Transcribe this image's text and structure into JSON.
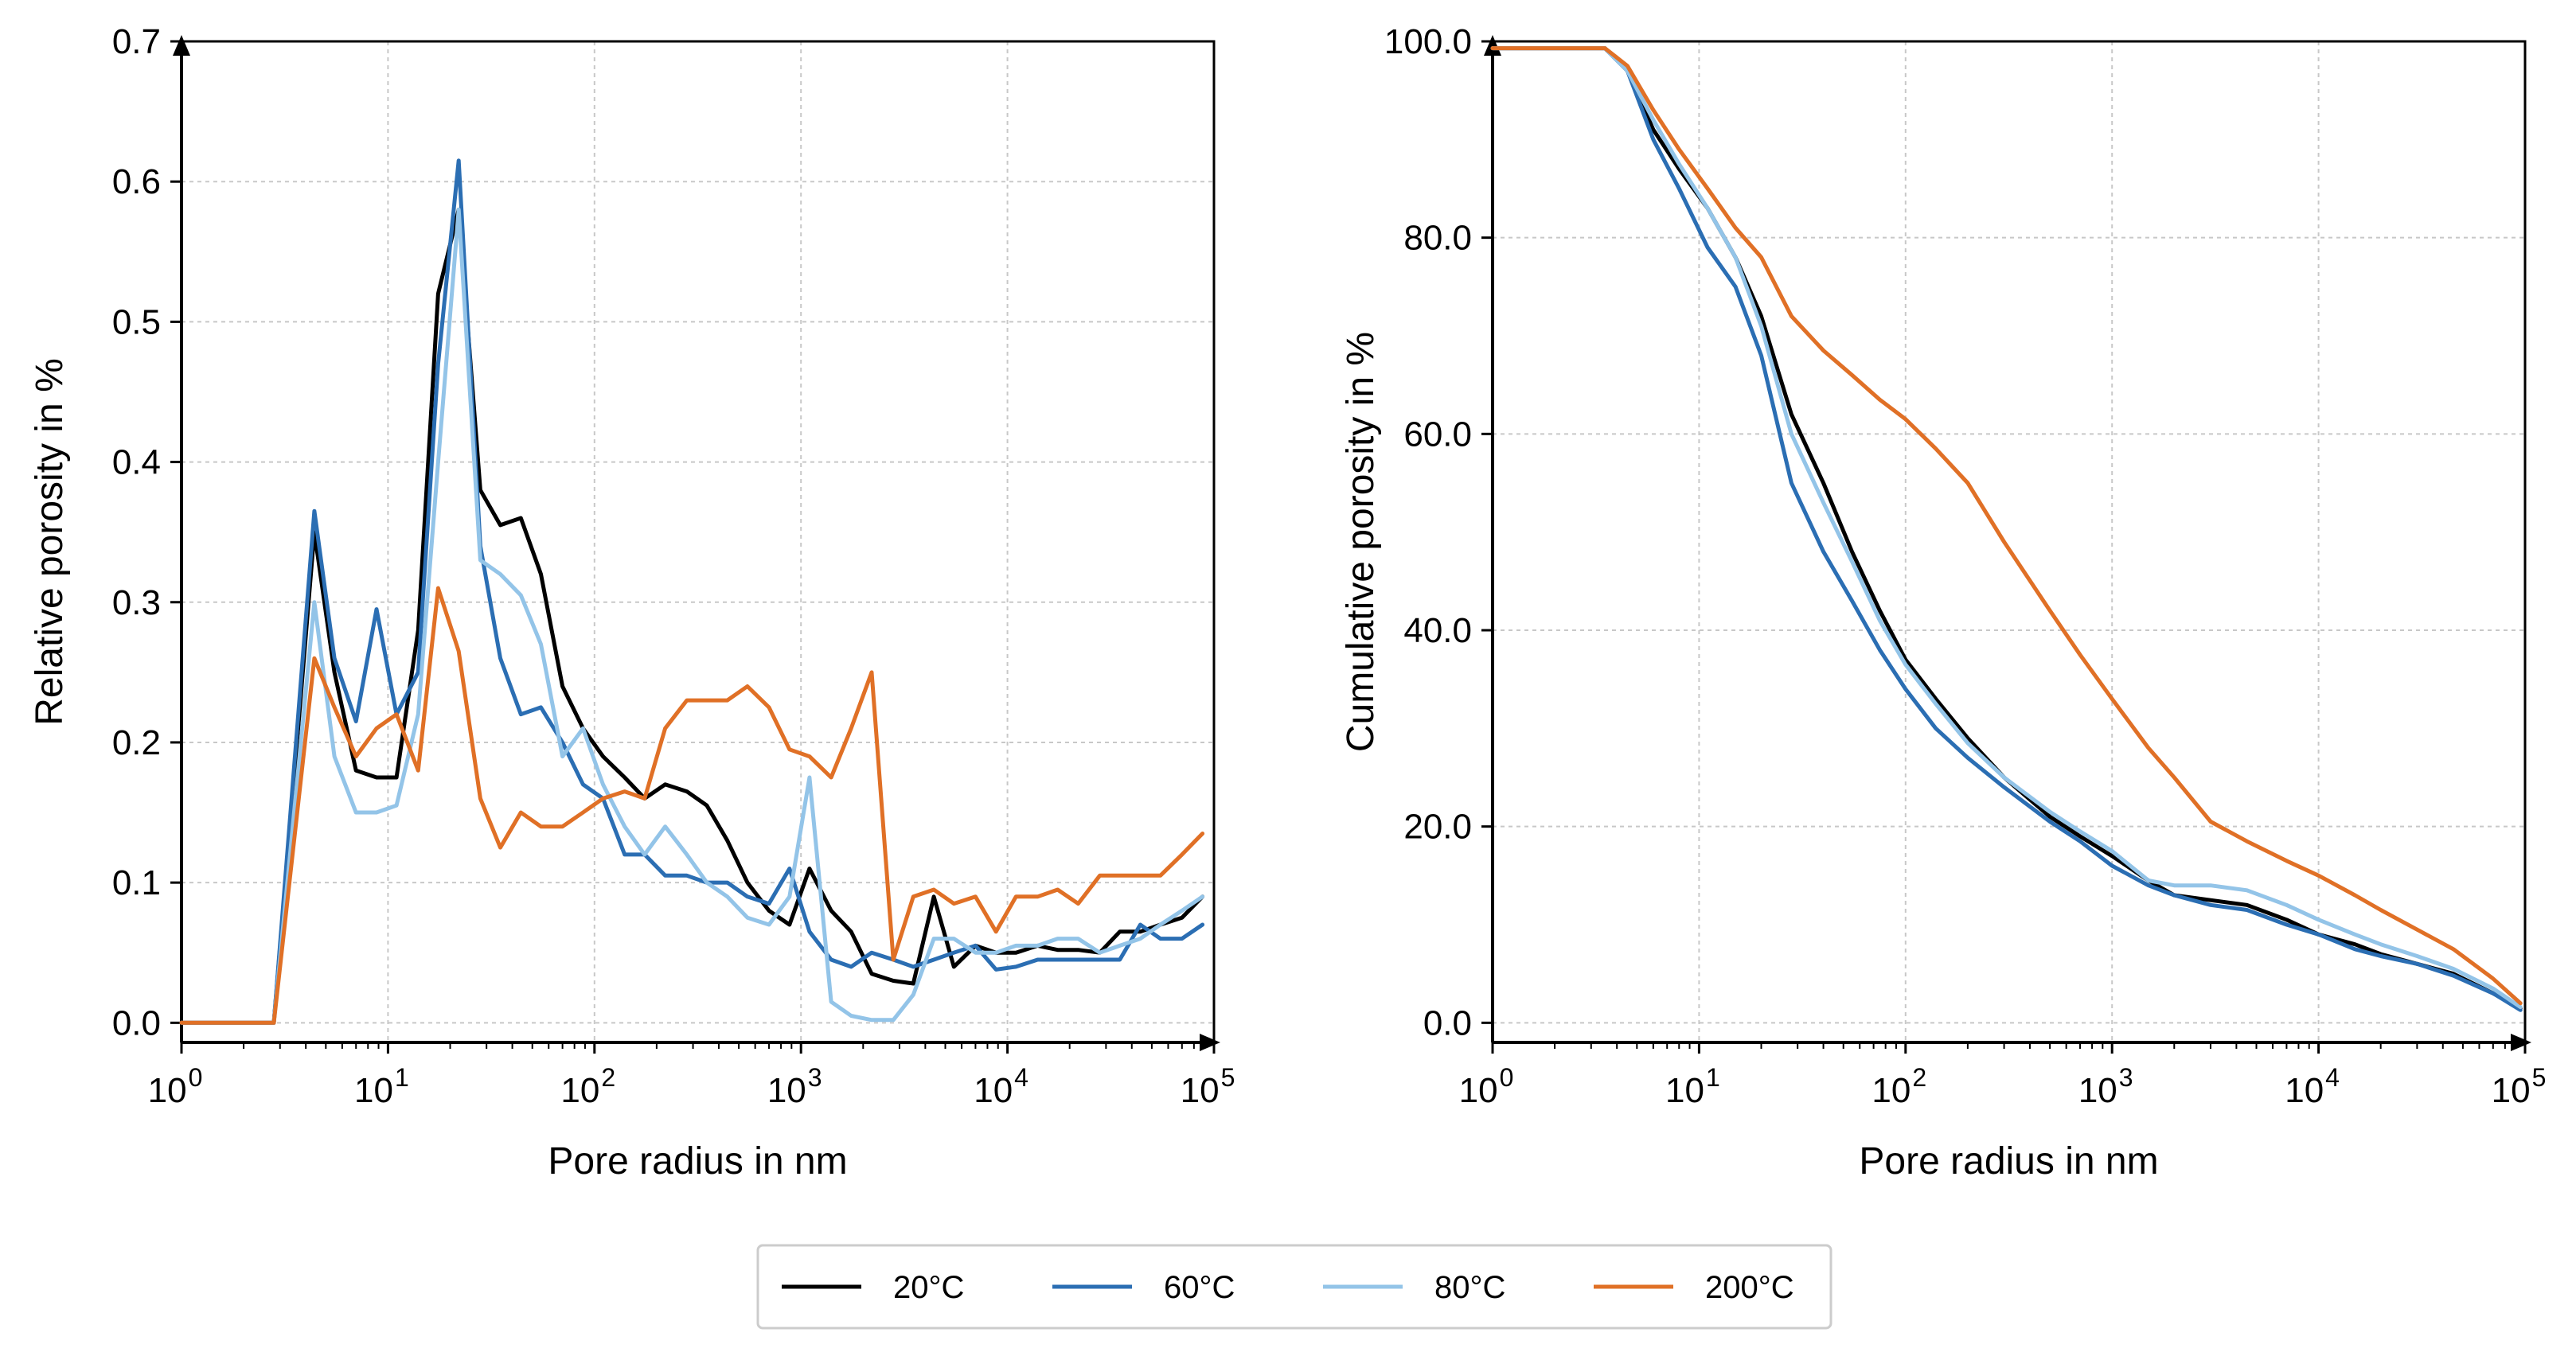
{
  "chart_data": [
    {
      "type": "line",
      "id": "relative",
      "xlabel": "Pore radius in nm",
      "ylabel": "Relative porosity in %",
      "xscale": "log",
      "xlim": [
        1,
        100000
      ],
      "ylim": [
        0,
        0.7
      ],
      "xticks": [
        1,
        10,
        100,
        1000,
        10000,
        100000
      ],
      "yticks": [
        0.0,
        0.1,
        0.2,
        0.3,
        0.4,
        0.5,
        0.6,
        0.7
      ],
      "ytick_labels": [
        "0.0",
        "0.1",
        "0.2",
        "0.3",
        "0.4",
        "0.5",
        "0.6",
        "0.7"
      ],
      "grid": true,
      "series": [
        {
          "name": "20°C",
          "x": [
            1,
            2.8,
            4.4,
            5.5,
            7,
            8.8,
            11,
            14,
            17.5,
            22,
            28,
            35,
            44,
            55,
            70,
            88,
            110,
            140,
            175,
            220,
            280,
            350,
            440,
            550,
            700,
            880,
            1100,
            1400,
            1750,
            2200,
            2800,
            3500,
            4400,
            5500,
            7000,
            8800,
            11000,
            14000,
            17500,
            22000,
            28000,
            35000,
            44000,
            55000,
            70000,
            88000
          ],
          "y": [
            0,
            0,
            0.35,
            0.25,
            0.18,
            0.175,
            0.175,
            0.28,
            0.52,
            0.58,
            0.38,
            0.355,
            0.36,
            0.32,
            0.24,
            0.21,
            0.19,
            0.175,
            0.16,
            0.17,
            0.165,
            0.155,
            0.13,
            0.1,
            0.08,
            0.07,
            0.11,
            0.08,
            0.065,
            0.035,
            0.03,
            0.028,
            0.09,
            0.04,
            0.055,
            0.05,
            0.05,
            0.055,
            0.052,
            0.052,
            0.05,
            0.065,
            0.065,
            0.07,
            0.075,
            0.09
          ]
        },
        {
          "name": "60°C",
          "x": [
            1,
            2.8,
            4.4,
            5.5,
            7,
            8.8,
            11,
            14,
            17.5,
            22,
            28,
            35,
            44,
            55,
            70,
            88,
            110,
            140,
            175,
            220,
            280,
            350,
            440,
            550,
            700,
            880,
            1100,
            1400,
            1750,
            2200,
            2800,
            3500,
            4400,
            5500,
            7000,
            8800,
            11000,
            14000,
            17500,
            22000,
            28000,
            35000,
            44000,
            55000,
            70000,
            88000
          ],
          "y": [
            0,
            0,
            0.365,
            0.26,
            0.215,
            0.295,
            0.22,
            0.25,
            0.47,
            0.615,
            0.34,
            0.26,
            0.22,
            0.225,
            0.2,
            0.17,
            0.16,
            0.12,
            0.12,
            0.105,
            0.105,
            0.1,
            0.1,
            0.09,
            0.085,
            0.11,
            0.065,
            0.045,
            0.04,
            0.05,
            0.045,
            0.04,
            0.045,
            0.05,
            0.055,
            0.038,
            0.04,
            0.045,
            0.045,
            0.045,
            0.045,
            0.045,
            0.07,
            0.06,
            0.06,
            0.07
          ]
        },
        {
          "name": "80°C",
          "x": [
            1,
            2.8,
            4.4,
            5.5,
            7,
            8.8,
            11,
            14,
            17.5,
            22,
            28,
            35,
            44,
            55,
            70,
            88,
            110,
            140,
            175,
            220,
            280,
            350,
            440,
            550,
            700,
            880,
            1100,
            1400,
            1750,
            2200,
            2800,
            3500,
            4400,
            5500,
            7000,
            8800,
            11000,
            14000,
            17500,
            22000,
            28000,
            35000,
            44000,
            55000,
            70000,
            88000
          ],
          "y": [
            0,
            0,
            0.3,
            0.19,
            0.15,
            0.15,
            0.155,
            0.22,
            0.4,
            0.58,
            0.33,
            0.32,
            0.305,
            0.27,
            0.19,
            0.21,
            0.17,
            0.14,
            0.12,
            0.14,
            0.12,
            0.1,
            0.09,
            0.075,
            0.07,
            0.09,
            0.175,
            0.015,
            0.005,
            0.002,
            0.002,
            0.02,
            0.06,
            0.06,
            0.05,
            0.05,
            0.055,
            0.055,
            0.06,
            0.06,
            0.05,
            0.055,
            0.06,
            0.07,
            0.08,
            0.09
          ]
        },
        {
          "name": "200°C",
          "x": [
            1,
            2.8,
            4.4,
            5.5,
            7,
            8.8,
            11,
            14,
            17.5,
            22,
            28,
            35,
            44,
            55,
            70,
            88,
            110,
            140,
            175,
            220,
            280,
            350,
            440,
            550,
            700,
            880,
            1100,
            1400,
            1750,
            2200,
            2800,
            3500,
            4400,
            5500,
            7000,
            8800,
            11000,
            14000,
            17500,
            22000,
            28000,
            35000,
            44000,
            55000,
            70000,
            88000
          ],
          "y": [
            0,
            0,
            0.26,
            0.225,
            0.19,
            0.21,
            0.22,
            0.18,
            0.31,
            0.265,
            0.16,
            0.125,
            0.15,
            0.14,
            0.14,
            0.15,
            0.16,
            0.165,
            0.16,
            0.21,
            0.23,
            0.23,
            0.23,
            0.24,
            0.225,
            0.195,
            0.19,
            0.175,
            0.21,
            0.25,
            0.045,
            0.09,
            0.095,
            0.085,
            0.09,
            0.065,
            0.09,
            0.09,
            0.095,
            0.085,
            0.105,
            0.105,
            0.105,
            0.105,
            0.12,
            0.135
          ]
        }
      ]
    },
    {
      "type": "line",
      "id": "cumulative",
      "xlabel": "Pore radius in nm",
      "ylabel": "Cumulative porosity in %",
      "xscale": "log",
      "xlim": [
        1,
        100000
      ],
      "ylim": [
        0,
        100
      ],
      "xticks": [
        1,
        10,
        100,
        1000,
        10000,
        100000
      ],
      "yticks": [
        0,
        20,
        40,
        60,
        80,
        100
      ],
      "ytick_labels": [
        "0.0",
        "20.0",
        "40.0",
        "60.0",
        "80.0",
        "100.0"
      ],
      "grid": true,
      "series": [
        {
          "name": "20°C",
          "x": [
            1,
            3.5,
            4.5,
            6,
            8,
            11,
            15,
            20,
            28,
            40,
            55,
            75,
            100,
            140,
            200,
            300,
            500,
            700,
            1000,
            1500,
            2000,
            3000,
            4500,
            7000,
            10000,
            15000,
            20000,
            30000,
            45000,
            70000,
            95000
          ],
          "y": [
            99.3,
            99.3,
            97,
            91,
            87,
            83,
            78,
            72,
            62,
            55,
            48,
            42,
            37,
            33,
            29,
            25,
            21,
            19,
            17,
            14.5,
            13,
            12.5,
            12,
            10.5,
            9,
            8,
            7,
            6,
            5,
            3,
            1.5
          ]
        },
        {
          "name": "60°C",
          "x": [
            1,
            3.5,
            4.5,
            6,
            8,
            11,
            15,
            20,
            28,
            40,
            55,
            75,
            100,
            140,
            200,
            300,
            500,
            700,
            1000,
            1500,
            2000,
            3000,
            4500,
            7000,
            10000,
            15000,
            20000,
            30000,
            45000,
            70000,
            95000
          ],
          "y": [
            99.3,
            99.3,
            97,
            90,
            85,
            79,
            75,
            68,
            55,
            48,
            43,
            38,
            34,
            30,
            27,
            24,
            20.5,
            18.5,
            16,
            14,
            13,
            12,
            11.5,
            10,
            9,
            7.5,
            6.8,
            6,
            4.8,
            3,
            1.3
          ]
        },
        {
          "name": "80°C",
          "x": [
            1,
            3.5,
            4.5,
            6,
            8,
            11,
            15,
            20,
            28,
            40,
            55,
            75,
            100,
            140,
            200,
            300,
            500,
            700,
            1000,
            1500,
            2000,
            3000,
            4500,
            7000,
            10000,
            15000,
            20000,
            30000,
            45000,
            70000,
            95000
          ],
          "y": [
            99.3,
            99.3,
            97,
            92,
            87.5,
            83,
            78,
            71,
            60,
            53,
            47,
            41,
            36.5,
            32.5,
            28.5,
            25,
            21.5,
            19.5,
            17.5,
            14.5,
            14,
            14,
            13.5,
            12,
            10.5,
            9,
            8,
            6.8,
            5.5,
            3.5,
            1.6
          ]
        },
        {
          "name": "200°C",
          "x": [
            1,
            3.5,
            4.5,
            6,
            8,
            11,
            15,
            20,
            28,
            40,
            55,
            75,
            100,
            140,
            200,
            300,
            500,
            700,
            1000,
            1500,
            2000,
            3000,
            4500,
            7000,
            10000,
            15000,
            20000,
            30000,
            45000,
            70000,
            95000
          ],
          "y": [
            99.3,
            99.3,
            97.5,
            93,
            89,
            85,
            81,
            78,
            72,
            68.5,
            66,
            63.5,
            61.5,
            58.5,
            55,
            49,
            42,
            37.5,
            33,
            28,
            25,
            20.5,
            18.5,
            16.5,
            15,
            13,
            11.5,
            9.5,
            7.5,
            4.5,
            2
          ]
        }
      ]
    }
  ],
  "legend": {
    "placement": "bottom-center",
    "entries": [
      {
        "label": "20°C",
        "color": "#000000"
      },
      {
        "label": "60°C",
        "color": "#2b6eb3"
      },
      {
        "label": "80°C",
        "color": "#93c4e8"
      },
      {
        "label": "200°C",
        "color": "#e07026"
      }
    ]
  },
  "colors": {
    "20°C": "#000000",
    "60°C": "#2b6eb3",
    "80°C": "#93c4e8",
    "200°C": "#e07026",
    "grid": "#c8c8c8",
    "legend_border": "#cccccc"
  }
}
